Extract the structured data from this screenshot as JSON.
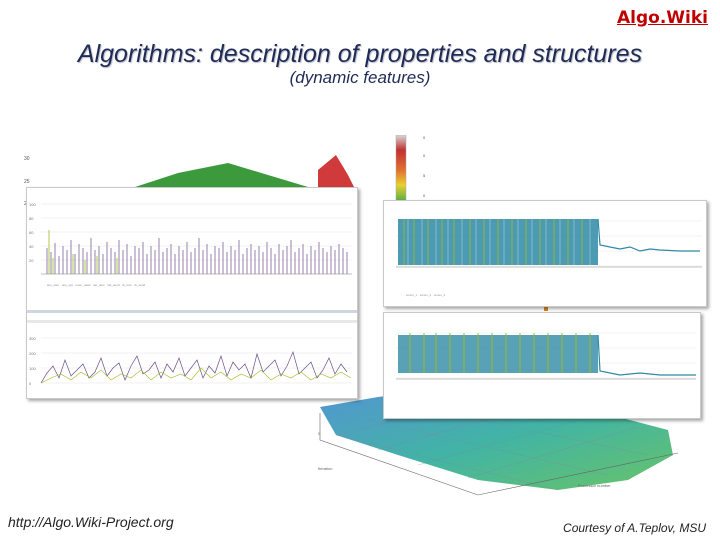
{
  "brand": "Algo.Wiki",
  "title": "Algorithms: description of properties and structures",
  "subtitle": "(dynamic features)",
  "footer": {
    "url": "http://Algo.Wiki-Project.org",
    "credit": "Courtesy of A.Teplov, MSU"
  },
  "colors": {
    "title": "#1f2b55",
    "brand": "#c00000",
    "series_purple": "#6b4f8c",
    "series_green": "#9bbb23",
    "series_teal": "#2e8aa5"
  },
  "icons": [
    "colorbar-legend",
    "surface-3d-plot"
  ]
}
